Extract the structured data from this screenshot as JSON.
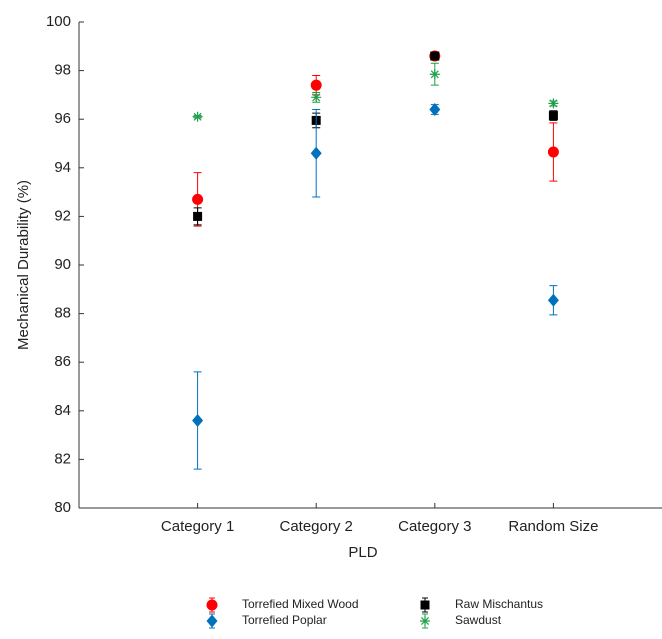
{
  "chart_data": {
    "type": "scatter",
    "x_label": "PLD",
    "y_label": "Mechanical Durability (%)",
    "categories": [
      "Category 1",
      "Category 2",
      "Category 3",
      "Random Size"
    ],
    "ylim": [
      80,
      100
    ],
    "yticks": [
      80,
      82,
      84,
      86,
      88,
      90,
      92,
      94,
      96,
      98,
      100
    ],
    "series": [
      {
        "name": "Torrefied Mixed Wood",
        "color": "#ff0000",
        "marker": "circle",
        "values": [
          92.7,
          97.4,
          98.6,
          94.65
        ],
        "errors": [
          1.1,
          0.4,
          0.1,
          1.2
        ]
      },
      {
        "name": "Raw Mischantus",
        "color": "#000000",
        "marker": "square",
        "values": [
          92.0,
          95.95,
          98.6,
          96.15
        ],
        "errors": [
          0.35,
          0.3,
          0.1,
          0.2
        ]
      },
      {
        "name": "Torrefied Poplar",
        "color": "#0072bd",
        "marker": "diamond",
        "values": [
          83.6,
          94.6,
          96.4,
          88.55
        ],
        "errors": [
          2.0,
          1.8,
          0.2,
          0.6
        ]
      },
      {
        "name": "Sawdust",
        "color": "#1fa04a",
        "marker": "asterisk",
        "values": [
          96.1,
          96.9,
          97.85,
          96.65
        ],
        "errors": [
          0.05,
          0.2,
          0.45,
          0.1
        ]
      }
    ]
  }
}
